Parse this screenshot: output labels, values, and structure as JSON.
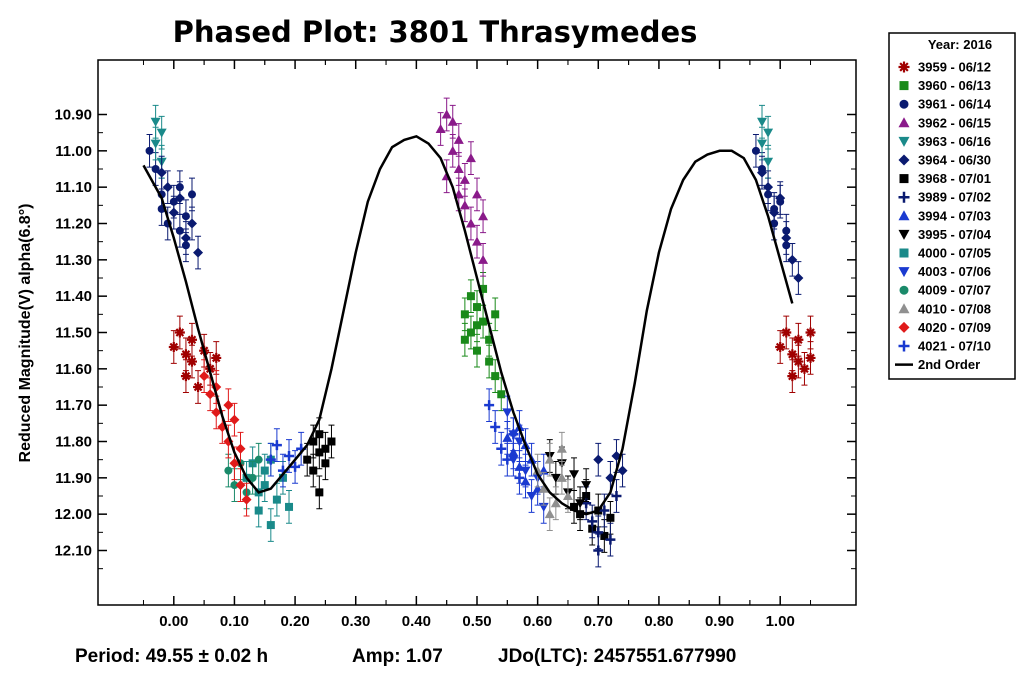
{
  "chart_data": {
    "type": "scatter",
    "title": "Phased Plot: 3801 Thrasymedes",
    "ylabel": "Reduced Magnitude(V) alpha(6.8°)",
    "xlabel": "",
    "xlim": [
      -0.125,
      1.125
    ],
    "ylim": [
      10.75,
      12.25
    ],
    "y_inverted": true,
    "grid": false,
    "legend_position": "outside-top-right",
    "x_ticks": [
      "0.00",
      "0.10",
      "0.20",
      "0.30",
      "0.40",
      "0.50",
      "0.60",
      "0.70",
      "0.80",
      "0.90",
      "1.00"
    ],
    "y_ticks": [
      "10.90",
      "11.00",
      "11.10",
      "11.20",
      "11.30",
      "11.40",
      "11.50",
      "11.60",
      "11.70",
      "11.80",
      "11.90",
      "12.00",
      "12.10"
    ],
    "legend_title": "Year: 2016",
    "series": [
      {
        "name": "3959 - 06/12",
        "color": "#a00000",
        "marker": "asterisk",
        "points": [
          [
            0.0,
            11.54
          ],
          [
            0.01,
            11.5
          ],
          [
            0.02,
            11.56
          ],
          [
            0.02,
            11.62
          ],
          [
            0.03,
            11.52
          ],
          [
            0.03,
            11.58
          ],
          [
            0.04,
            11.65
          ],
          [
            0.05,
            11.55
          ],
          [
            0.06,
            11.6
          ],
          [
            0.07,
            11.57
          ],
          [
            1.0,
            11.54
          ],
          [
            1.01,
            11.5
          ],
          [
            1.02,
            11.56
          ],
          [
            1.02,
            11.62
          ],
          [
            1.03,
            11.52
          ],
          [
            1.03,
            11.58
          ],
          [
            1.04,
            11.6
          ],
          [
            1.05,
            11.57
          ],
          [
            1.05,
            11.5
          ]
        ]
      },
      {
        "name": "3960 - 06/13",
        "color": "#1a8a1a",
        "marker": "square",
        "points": [
          [
            0.48,
            11.45
          ],
          [
            0.49,
            11.4
          ],
          [
            0.49,
            11.5
          ],
          [
            0.5,
            11.43
          ],
          [
            0.5,
            11.55
          ],
          [
            0.51,
            11.47
          ],
          [
            0.51,
            11.38
          ],
          [
            0.52,
            11.52
          ],
          [
            0.52,
            11.58
          ],
          [
            0.53,
            11.45
          ],
          [
            0.53,
            11.62
          ],
          [
            0.54,
            11.67
          ],
          [
            0.48,
            11.52
          ],
          [
            0.5,
            11.48
          ]
        ]
      },
      {
        "name": "3961 - 06/14",
        "color": "#0a1a70",
        "marker": "circle",
        "points": [
          [
            -0.04,
            11.0
          ],
          [
            -0.03,
            11.05
          ],
          [
            -0.02,
            11.12
          ],
          [
            -0.02,
            11.16
          ],
          [
            -0.01,
            11.2
          ],
          [
            0.0,
            11.14
          ],
          [
            0.01,
            11.1
          ],
          [
            0.01,
            11.22
          ],
          [
            0.02,
            11.18
          ],
          [
            0.02,
            11.26
          ],
          [
            0.03,
            11.12
          ],
          [
            0.96,
            11.0
          ],
          [
            0.97,
            11.05
          ],
          [
            0.98,
            11.12
          ],
          [
            0.99,
            11.16
          ],
          [
            0.99,
            11.2
          ],
          [
            1.0,
            11.14
          ],
          [
            1.01,
            11.22
          ],
          [
            1.01,
            11.26
          ]
        ]
      },
      {
        "name": "3962 - 06/15",
        "color": "#8a1a8a",
        "marker": "triangle-up",
        "points": [
          [
            0.44,
            10.94
          ],
          [
            0.45,
            10.9
          ],
          [
            0.46,
            11.0
          ],
          [
            0.46,
            10.92
          ],
          [
            0.47,
            11.05
          ],
          [
            0.47,
            10.97
          ],
          [
            0.48,
            11.08
          ],
          [
            0.48,
            11.15
          ],
          [
            0.49,
            11.02
          ],
          [
            0.49,
            11.2
          ],
          [
            0.5,
            11.12
          ],
          [
            0.5,
            11.25
          ],
          [
            0.51,
            11.18
          ],
          [
            0.51,
            11.3
          ],
          [
            0.45,
            11.07
          ],
          [
            0.47,
            11.12
          ]
        ]
      },
      {
        "name": "3963 - 06/16",
        "color": "#1a8a8a",
        "marker": "triangle-down",
        "points": [
          [
            -0.03,
            10.92
          ],
          [
            -0.03,
            10.98
          ],
          [
            -0.02,
            10.95
          ],
          [
            -0.02,
            11.03
          ],
          [
            0.97,
            10.92
          ],
          [
            0.97,
            10.98
          ],
          [
            0.98,
            10.95
          ],
          [
            0.98,
            11.03
          ]
        ]
      },
      {
        "name": "3964 - 06/30",
        "color": "#0a1a70",
        "marker": "diamond",
        "points": [
          [
            -0.02,
            11.06
          ],
          [
            -0.01,
            11.1
          ],
          [
            0.0,
            11.17
          ],
          [
            0.01,
            11.13
          ],
          [
            0.02,
            11.24
          ],
          [
            0.03,
            11.2
          ],
          [
            0.04,
            11.28
          ],
          [
            0.97,
            11.06
          ],
          [
            0.98,
            11.1
          ],
          [
            0.99,
            11.17
          ],
          [
            1.0,
            11.13
          ],
          [
            1.01,
            11.24
          ],
          [
            1.02,
            11.3
          ],
          [
            1.03,
            11.35
          ],
          [
            0.7,
            11.85
          ],
          [
            0.72,
            11.9
          ],
          [
            0.73,
            11.84
          ],
          [
            0.74,
            11.88
          ]
        ]
      },
      {
        "name": "3968 - 07/01",
        "color": "#000000",
        "marker": "square",
        "points": [
          [
            0.22,
            11.85
          ],
          [
            0.23,
            11.8
          ],
          [
            0.23,
            11.88
          ],
          [
            0.24,
            11.83
          ],
          [
            0.24,
            11.78
          ],
          [
            0.25,
            11.86
          ],
          [
            0.25,
            11.82
          ],
          [
            0.26,
            11.8
          ],
          [
            0.24,
            11.94
          ],
          [
            0.66,
            11.98
          ],
          [
            0.67,
            12.0
          ],
          [
            0.68,
            11.95
          ],
          [
            0.69,
            12.04
          ],
          [
            0.7,
            11.99
          ],
          [
            0.71,
            12.06
          ],
          [
            0.72,
            12.01
          ]
        ]
      },
      {
        "name": "3989 - 07/02",
        "color": "#0a1a70",
        "marker": "plus",
        "points": [
          [
            0.68,
            11.97
          ],
          [
            0.69,
            12.02
          ],
          [
            0.7,
            12.05
          ],
          [
            0.7,
            12.1
          ],
          [
            0.71,
            11.99
          ],
          [
            0.72,
            12.07
          ],
          [
            0.73,
            11.95
          ]
        ]
      },
      {
        "name": "3994 - 07/03",
        "color": "#1a3ad0",
        "marker": "triangle-up",
        "points": [
          [
            0.55,
            11.79
          ],
          [
            0.56,
            11.83
          ],
          [
            0.57,
            11.76
          ],
          [
            0.57,
            11.87
          ],
          [
            0.58,
            11.81
          ],
          [
            0.58,
            11.91
          ],
          [
            0.59,
            11.85
          ],
          [
            0.6,
            11.93
          ],
          [
            0.61,
            11.88
          ]
        ]
      },
      {
        "name": "3995 - 07/04",
        "color": "#000000",
        "marker": "triangle-down",
        "points": [
          [
            0.62,
            11.84
          ],
          [
            0.63,
            11.9
          ],
          [
            0.64,
            11.86
          ],
          [
            0.65,
            11.94
          ],
          [
            0.66,
            11.89
          ],
          [
            0.67,
            11.97
          ],
          [
            0.68,
            11.92
          ]
        ]
      },
      {
        "name": "4000 - 07/05",
        "color": "#1a8a8a",
        "marker": "square",
        "points": [
          [
            0.12,
            11.9
          ],
          [
            0.13,
            11.86
          ],
          [
            0.14,
            11.94
          ],
          [
            0.14,
            11.99
          ],
          [
            0.15,
            11.88
          ],
          [
            0.15,
            11.92
          ],
          [
            0.16,
            12.03
          ],
          [
            0.17,
            11.96
          ],
          [
            0.18,
            11.9
          ],
          [
            0.19,
            11.98
          ],
          [
            0.16,
            11.85
          ]
        ]
      },
      {
        "name": "4003 - 07/06",
        "color": "#1a3ad0",
        "marker": "triangle-down",
        "points": [
          [
            0.55,
            11.72
          ],
          [
            0.56,
            11.78
          ],
          [
            0.56,
            11.85
          ],
          [
            0.57,
            11.8
          ],
          [
            0.58,
            11.88
          ],
          [
            0.59,
            11.95
          ],
          [
            0.6,
            11.9
          ],
          [
            0.61,
            11.98
          ]
        ]
      },
      {
        "name": "4009 - 07/07",
        "color": "#1a8a6a",
        "marker": "circle",
        "points": [
          [
            0.09,
            11.88
          ],
          [
            0.1,
            11.92
          ],
          [
            0.11,
            11.86
          ],
          [
            0.12,
            11.94
          ],
          [
            0.13,
            11.9
          ],
          [
            0.14,
            11.85
          ]
        ]
      },
      {
        "name": "4010 - 07/08",
        "color": "#909090",
        "marker": "triangle-up",
        "points": [
          [
            0.6,
            11.88
          ],
          [
            0.61,
            11.93
          ],
          [
            0.62,
            11.85
          ],
          [
            0.63,
            11.97
          ],
          [
            0.64,
            11.9
          ],
          [
            0.65,
            11.95
          ],
          [
            0.62,
            12.0
          ],
          [
            0.64,
            11.82
          ]
        ]
      },
      {
        "name": "4020 - 07/09",
        "color": "#e01a1a",
        "marker": "diamond",
        "points": [
          [
            0.05,
            11.62
          ],
          [
            0.06,
            11.67
          ],
          [
            0.07,
            11.72
          ],
          [
            0.07,
            11.65
          ],
          [
            0.08,
            11.76
          ],
          [
            0.09,
            11.7
          ],
          [
            0.09,
            11.8
          ],
          [
            0.1,
            11.74
          ],
          [
            0.11,
            11.82
          ],
          [
            0.1,
            11.86
          ],
          [
            0.11,
            11.92
          ],
          [
            0.12,
            11.96
          ]
        ]
      },
      {
        "name": "4021 - 07/10",
        "color": "#1a3ad0",
        "marker": "plus",
        "points": [
          [
            0.16,
            11.85
          ],
          [
            0.17,
            11.81
          ],
          [
            0.18,
            11.88
          ],
          [
            0.19,
            11.84
          ],
          [
            0.2,
            11.87
          ],
          [
            0.21,
            11.82
          ],
          [
            0.52,
            11.7
          ],
          [
            0.53,
            11.76
          ],
          [
            0.54,
            11.82
          ],
          [
            0.55,
            11.85
          ],
          [
            0.56,
            11.78
          ],
          [
            0.57,
            11.9
          ]
        ]
      },
      {
        "name": "2nd Order",
        "color": "#000000",
        "marker": "line",
        "points": []
      }
    ],
    "fit_curve": {
      "name": "2nd Order",
      "points": [
        [
          -0.05,
          11.04
        ],
        [
          -0.02,
          11.13
        ],
        [
          0.0,
          11.24
        ],
        [
          0.02,
          11.36
        ],
        [
          0.04,
          11.49
        ],
        [
          0.06,
          11.61
        ],
        [
          0.08,
          11.73
        ],
        [
          0.1,
          11.83
        ],
        [
          0.12,
          11.9
        ],
        [
          0.14,
          11.94
        ],
        [
          0.16,
          11.93
        ],
        [
          0.18,
          11.89
        ],
        [
          0.2,
          11.85
        ],
        [
          0.22,
          11.81
        ],
        [
          0.24,
          11.74
        ],
        [
          0.26,
          11.6
        ],
        [
          0.28,
          11.44
        ],
        [
          0.3,
          11.28
        ],
        [
          0.32,
          11.14
        ],
        [
          0.34,
          11.05
        ],
        [
          0.36,
          10.99
        ],
        [
          0.38,
          10.97
        ],
        [
          0.4,
          10.96
        ],
        [
          0.42,
          10.98
        ],
        [
          0.44,
          11.02
        ],
        [
          0.46,
          11.1
        ],
        [
          0.48,
          11.22
        ],
        [
          0.5,
          11.35
        ],
        [
          0.52,
          11.48
        ],
        [
          0.54,
          11.61
        ],
        [
          0.56,
          11.72
        ],
        [
          0.58,
          11.81
        ],
        [
          0.6,
          11.89
        ],
        [
          0.62,
          11.94
        ],
        [
          0.64,
          11.97
        ],
        [
          0.66,
          11.99
        ],
        [
          0.68,
          12.0
        ],
        [
          0.7,
          11.99
        ],
        [
          0.72,
          11.94
        ],
        [
          0.74,
          11.82
        ],
        [
          0.76,
          11.64
        ],
        [
          0.78,
          11.44
        ],
        [
          0.8,
          11.28
        ],
        [
          0.82,
          11.16
        ],
        [
          0.84,
          11.08
        ],
        [
          0.86,
          11.03
        ],
        [
          0.88,
          11.01
        ],
        [
          0.9,
          11.0
        ],
        [
          0.92,
          11.0
        ],
        [
          0.94,
          11.02
        ],
        [
          0.96,
          11.08
        ],
        [
          0.98,
          11.18
        ],
        [
          1.0,
          11.3
        ],
        [
          1.02,
          11.42
        ]
      ]
    }
  },
  "footer": {
    "period": "Period: 49.55 ± 0.02 h",
    "amp": "Amp: 1.07",
    "jdo": "JDo(LTC): 2457551.677990"
  }
}
